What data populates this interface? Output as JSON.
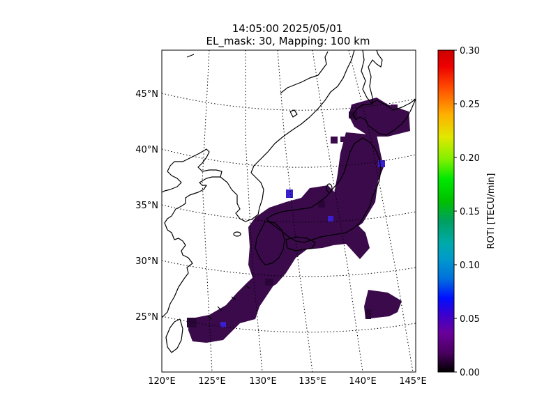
{
  "figure": {
    "title_line1": "14:05:00 2025/05/01",
    "title_line2": "EL_mask: 30, Mapping: 100 km"
  },
  "map": {
    "lat_ticks": [
      "25°N",
      "30°N",
      "35°N",
      "40°N",
      "45°N"
    ],
    "lon_ticks": [
      "120°E",
      "125°E",
      "130°E",
      "135°E",
      "140°E",
      "145°E"
    ],
    "graticule": "dotted",
    "coastlines": true
  },
  "colorbar": {
    "label": "ROTI [TECU/min]",
    "ticks": [
      "0.00",
      "0.05",
      "0.10",
      "0.15",
      "0.20",
      "0.25",
      "0.30"
    ],
    "range": [
      0.0,
      0.3
    ],
    "colormap": "nipy_spectral"
  },
  "roti_field": {
    "typical_value": 0.03,
    "regions": [
      "Hokkaido",
      "Honshu",
      "Shikoku",
      "Kyushu",
      "Ryukyu Islands",
      "Ogasawara Islands"
    ]
  },
  "colors": {
    "typical_cell": "#3a0a4a",
    "dark_cell": "#2a0638",
    "blue_cell": "#3a1fd0",
    "coastline": "#000000"
  }
}
